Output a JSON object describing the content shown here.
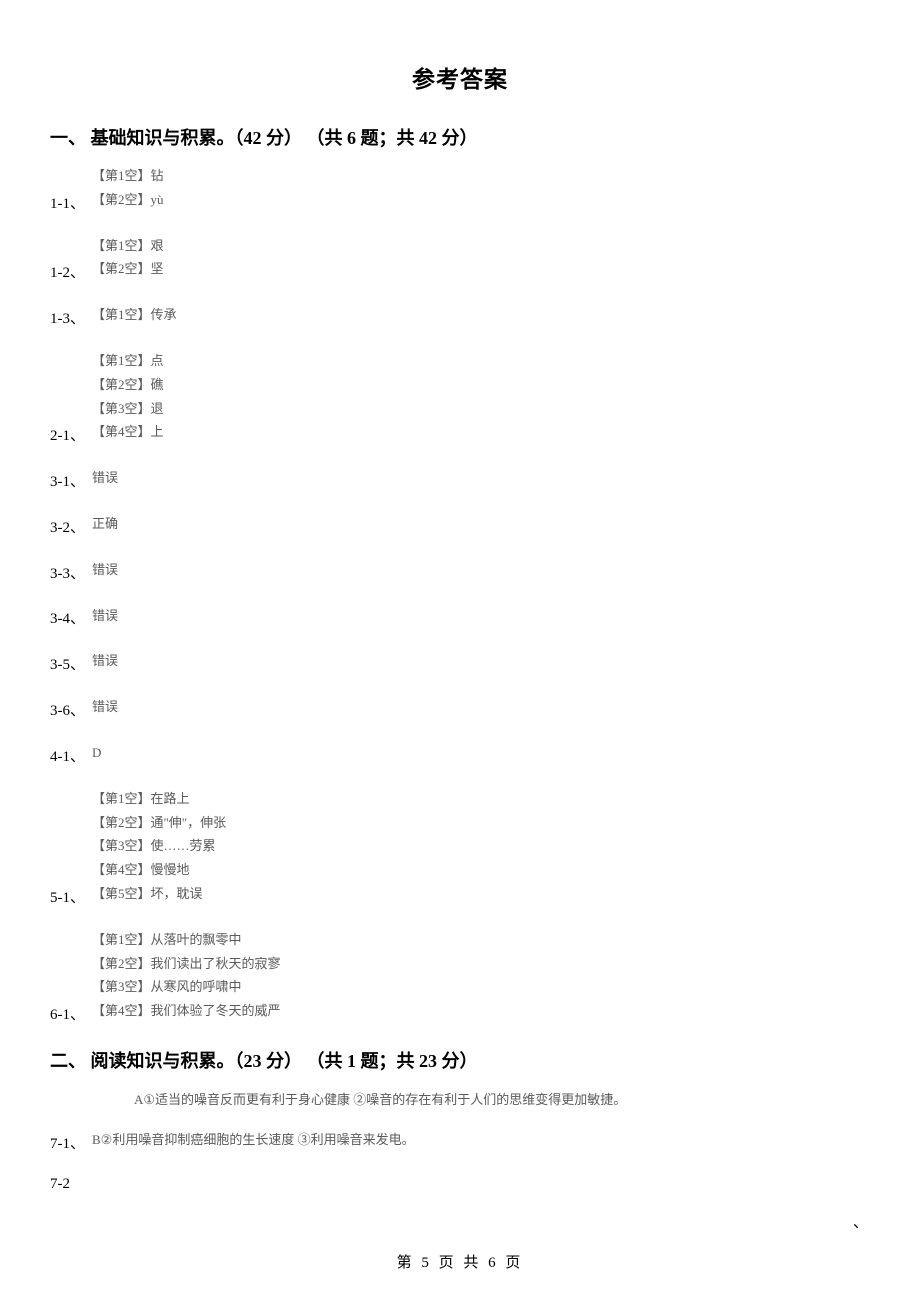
{
  "title": "参考答案",
  "section1": {
    "header": "一、 基础知识与积累。（42 分） （共 6 题；共 42 分）",
    "items": [
      {
        "num": "1-1、",
        "lines": [
          "【第1空】钻",
          "【第2空】yù"
        ]
      },
      {
        "num": "1-2、",
        "lines": [
          "【第1空】艰",
          "【第2空】坚"
        ]
      },
      {
        "num": "1-3、",
        "lines": [
          "【第1空】传承"
        ]
      },
      {
        "num": "2-1、",
        "lines": [
          "【第1空】点",
          "【第2空】礁",
          "【第3空】退",
          "【第4空】上"
        ]
      },
      {
        "num": "3-1、",
        "lines": [
          "错误"
        ]
      },
      {
        "num": "3-2、",
        "lines": [
          "正确"
        ]
      },
      {
        "num": "3-3、",
        "lines": [
          "错误"
        ]
      },
      {
        "num": "3-4、",
        "lines": [
          "错误"
        ]
      },
      {
        "num": "3-5、",
        "lines": [
          "错误"
        ]
      },
      {
        "num": "3-6、",
        "lines": [
          "错误"
        ]
      },
      {
        "num": "4-1、",
        "lines": [
          "D"
        ]
      },
      {
        "num": "5-1、",
        "lines": [
          "【第1空】在路上",
          "【第2空】通\"伸\"，伸张",
          "【第3空】使……劳累",
          "【第4空】慢慢地",
          "【第5空】坏，耽误"
        ]
      },
      {
        "num": "6-1、",
        "lines": [
          "【第1空】从落叶的飘零中",
          "【第2空】我们读出了秋天的寂寥",
          "【第3空】从寒风的呼啸中",
          "【第4空】我们体验了冬天的威严"
        ]
      }
    ]
  },
  "section2": {
    "header": "二、 阅读知识与积累。（23 分） （共 1 题；共 23 分）",
    "preText": "A①适当的噪音反而更有利于身心健康 ②噪音的存在有利于人们的思维变得更加敏捷。",
    "items": [
      {
        "num": "7-1、",
        "lines": [
          "B②利用噪音抑制癌细胞的生长速度 ③利用噪音来发电。"
        ]
      },
      {
        "num": "7-2",
        "lines": [
          ""
        ]
      }
    ]
  },
  "footer": "第 5 页 共 6 页",
  "cornerMark": "、"
}
